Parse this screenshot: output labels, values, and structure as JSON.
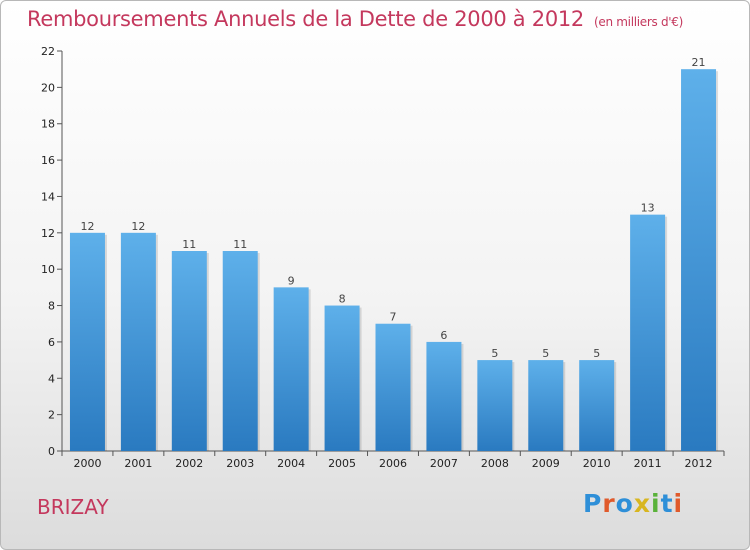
{
  "title": "Remboursements Annuels de la Dette de 2000 à 2012",
  "unit_note": "(en milliers d'€)",
  "commune": "BRIZAY",
  "logo": {
    "text": "Proxiti",
    "letters": [
      {
        "ch": "P",
        "color": "#2e8fd8"
      },
      {
        "ch": "r",
        "color": "#e05a2b"
      },
      {
        "ch": "o",
        "color": "#2e8fd8"
      },
      {
        "ch": "x",
        "color": "#d8b620"
      },
      {
        "ch": "i",
        "color": "#5ab23a"
      },
      {
        "ch": "t",
        "color": "#2e8fd8"
      },
      {
        "ch": "i",
        "color": "#e05a2b"
      }
    ]
  },
  "chart_data": {
    "type": "bar",
    "categories": [
      "2000",
      "2001",
      "2002",
      "2003",
      "2004",
      "2005",
      "2006",
      "2007",
      "2008",
      "2009",
      "2010",
      "2011",
      "2012"
    ],
    "values": [
      12,
      12,
      11,
      11,
      9,
      8,
      7,
      6,
      5,
      5,
      5,
      13,
      21
    ],
    "ylim": [
      0,
      22
    ],
    "yticks": [
      0,
      2,
      4,
      6,
      8,
      10,
      12,
      14,
      16,
      18,
      20,
      22
    ],
    "grid": false,
    "colors": {
      "bar_top": "#5eb0ea",
      "bar_bottom": "#2a7ac0",
      "title": "#c4385d"
    }
  }
}
